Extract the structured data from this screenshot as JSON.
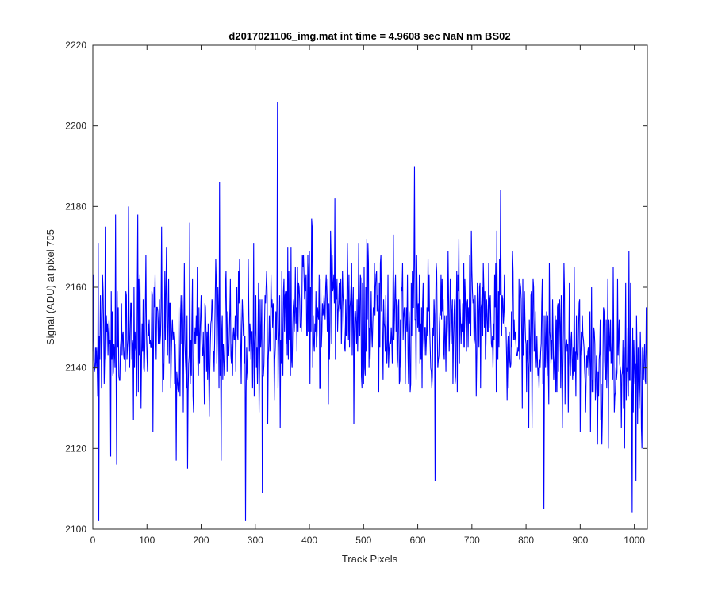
{
  "chart_data": {
    "type": "line",
    "title": "d2017021106_img.mat int time = 4.9608 sec  NaN nm BS02",
    "xlabel": "Track Pixels",
    "ylabel": "Signal (ADU) at pixel 705",
    "xlim": [
      0,
      1024
    ],
    "ylim": [
      2100,
      2220
    ],
    "xticks": [
      0,
      100,
      200,
      300,
      400,
      500,
      600,
      700,
      800,
      900,
      1000
    ],
    "yticks": [
      2100,
      2120,
      2140,
      2160,
      2180,
      2200,
      2220
    ],
    "grid": false,
    "line_color": "#0000ff",
    "series": [
      {
        "x": [
          0,
          10,
          11,
          23,
          33,
          44,
          66,
          83,
          111,
          127,
          175,
          179,
          234,
          237,
          282,
          313,
          341,
          447,
          594,
          632,
          753,
          833,
          996,
          1003,
          1024
        ],
        "values": [
          2144,
          2171,
          2102,
          2175,
          2118,
          2116,
          2180,
          2178,
          2124,
          2175,
          2115,
          2176,
          2186,
          2117,
          2102,
          2109,
          2206,
          2182,
          2190,
          2112,
          2184,
          2105,
          2104,
          2112,
          2137
        ]
      }
    ]
  }
}
